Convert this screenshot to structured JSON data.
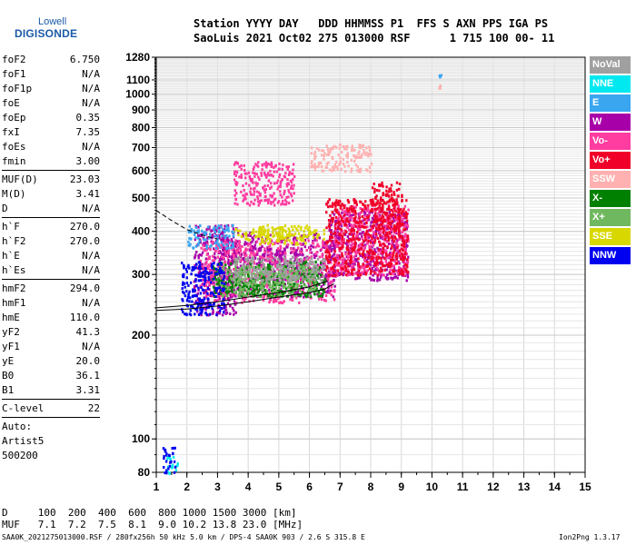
{
  "logo": {
    "line1": "Lowell",
    "line2": "DIGISONDE"
  },
  "header": {
    "line1": "Station YYYY DAY   DDD HHMMSS P1  FFS S AXN PPS IGA PS",
    "line2": "SaoLuis 2021 Oct02 275 013000 RSF      1 715 100 00- 11"
  },
  "params": [
    [
      {
        "k": "foF2",
        "v": "6.750"
      },
      {
        "k": "foF1",
        "v": "N/A"
      },
      {
        "k": "foF1p",
        "v": "N/A"
      },
      {
        "k": "foE",
        "v": "N/A"
      },
      {
        "k": "foEp",
        "v": "0.35"
      },
      {
        "k": "fxI",
        "v": "7.35"
      },
      {
        "k": "foEs",
        "v": "N/A"
      },
      {
        "k": "fmin",
        "v": "3.00"
      }
    ],
    [
      {
        "k": "MUF(D)",
        "v": "23.03"
      },
      {
        "k": "M(D)",
        "v": "3.41"
      },
      {
        "k": "D",
        "v": "N/A"
      }
    ],
    [
      {
        "k": "h`F",
        "v": "270.0"
      },
      {
        "k": "h`F2",
        "v": "270.0"
      },
      {
        "k": "h`E",
        "v": "N/A"
      },
      {
        "k": "h`Es",
        "v": "N/A"
      }
    ],
    [
      {
        "k": "hmF2",
        "v": "294.0"
      },
      {
        "k": "hmF1",
        "v": "N/A"
      },
      {
        "k": "hmE",
        "v": "110.0"
      },
      {
        "k": "yF2",
        "v": "41.3"
      },
      {
        "k": "yF1",
        "v": "N/A"
      },
      {
        "k": "yE",
        "v": "20.0"
      },
      {
        "k": "B0",
        "v": "36.1"
      },
      {
        "k": "B1",
        "v": "3.31"
      }
    ],
    [
      {
        "k": "C-level",
        "v": "22"
      }
    ]
  ],
  "auto": {
    "l1": "Auto:",
    "l2": "Artist5",
    "l3": "500200"
  },
  "legend": [
    {
      "label": "NoVal",
      "color": "#a0a0a0"
    },
    {
      "label": "NNE",
      "color": "#00e8f0"
    },
    {
      "label": "E",
      "color": "#3aa6f0"
    },
    {
      "label": "W",
      "color": "#a800a8"
    },
    {
      "label": "Vo-",
      "color": "#ff3ca0"
    },
    {
      "label": "Vo+",
      "color": "#f00028"
    },
    {
      "label": "SSW",
      "color": "#ffb0b0"
    },
    {
      "label": "X-",
      "color": "#008000"
    },
    {
      "label": "X+",
      "color": "#70b860"
    },
    {
      "label": "SSE",
      "color": "#d8d800"
    },
    {
      "label": "NNW",
      "color": "#0000f0"
    }
  ],
  "bottom": {
    "d_line": "D     100  200  400  600  800 1000 1500 3000 [km]",
    "muf_line": "MUF   7.1  7.2  7.5  8.1  9.0 10.2 13.8 23.0 [MHz]"
  },
  "footer": {
    "left": "SAA0K_2021275013000.RSF / 280fx256h 50 kHz 5.0 km / DPS-4 SAA0K 903 / 2.6 S 315.8 E",
    "right": "Ion2Png 1.3.17"
  },
  "chart_data": {
    "type": "scatter",
    "title": "",
    "xlabel": "",
    "ylabel": "",
    "xlim": [
      1,
      15
    ],
    "ylim": [
      80,
      1280
    ],
    "y_scale": "log",
    "x_ticks": [
      1,
      2,
      3,
      4,
      5,
      6,
      7,
      8,
      9,
      10,
      11,
      12,
      13,
      14,
      15
    ],
    "y_ticks": [
      80,
      100,
      200,
      300,
      400,
      500,
      600,
      700,
      800,
      900,
      1000,
      1100,
      1280
    ],
    "grid": true,
    "series": [
      {
        "name": "W",
        "clusters": [
          [
            2.2,
            3.6,
            230,
            420
          ],
          [
            3.0,
            6.8,
            260,
            400
          ],
          [
            6.6,
            9.2,
            290,
            460
          ],
          [
            3.8,
            5.8,
            320,
            360
          ]
        ]
      },
      {
        "name": "Vo-",
        "clusters": [
          [
            2.4,
            6.8,
            250,
            380
          ],
          [
            6.8,
            9.2,
            300,
            480
          ],
          [
            3.5,
            5.5,
            480,
            640
          ]
        ]
      },
      {
        "name": "Vo+",
        "clusters": [
          [
            6.5,
            9.2,
            300,
            500
          ],
          [
            8.0,
            9.0,
            400,
            560
          ]
        ]
      },
      {
        "name": "X-",
        "clusters": [
          [
            2.8,
            6.5,
            260,
            330
          ]
        ]
      },
      {
        "name": "X+",
        "clusters": [
          [
            3.0,
            6.2,
            260,
            320
          ]
        ]
      },
      {
        "name": "SSE",
        "clusters": [
          [
            4.3,
            6.0,
            370,
            420
          ],
          [
            3.5,
            6.5,
            380,
            410
          ]
        ]
      },
      {
        "name": "E",
        "clusters": [
          [
            2.0,
            3.5,
            360,
            420
          ],
          [
            10.2,
            10.3,
            1130,
            1150
          ]
        ]
      },
      {
        "name": "NNE",
        "clusters": [
          [
            1.3,
            1.7,
            80,
            90
          ]
        ]
      },
      {
        "name": "NNW",
        "clusters": [
          [
            1.8,
            3.2,
            230,
            330
          ],
          [
            1.2,
            1.6,
            80,
            95
          ]
        ]
      },
      {
        "name": "SSW",
        "clusters": [
          [
            6.0,
            8.0,
            600,
            720
          ],
          [
            10.2,
            10.3,
            1040,
            1070
          ]
        ]
      },
      {
        "name": "NoVal",
        "clusters": [
          [
            3.5,
            6.5,
            290,
            340
          ]
        ]
      }
    ],
    "curves": [
      {
        "style": "solid",
        "points": [
          [
            1,
            240
          ],
          [
            2,
            244
          ],
          [
            3,
            250
          ],
          [
            4,
            258
          ],
          [
            5,
            266
          ],
          [
            6,
            276
          ],
          [
            6.6,
            287
          ]
        ]
      },
      {
        "style": "solid",
        "points": [
          [
            1,
            236
          ],
          [
            2,
            238
          ],
          [
            3,
            243
          ],
          [
            4,
            250
          ],
          [
            5,
            258
          ],
          [
            6,
            266
          ],
          [
            6.5,
            272
          ],
          [
            6.8,
            282
          ]
        ]
      },
      {
        "style": "dashed",
        "points": [
          [
            1,
            460
          ],
          [
            1.5,
            430
          ],
          [
            2,
            405
          ],
          [
            2.5,
            390
          ],
          [
            3,
            380
          ]
        ]
      }
    ]
  }
}
